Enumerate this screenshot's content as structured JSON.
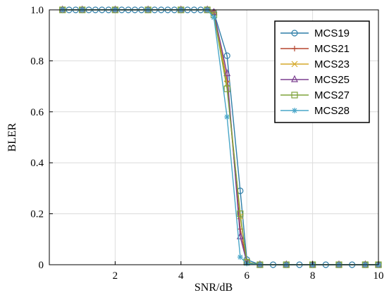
{
  "chart_data": {
    "type": "line",
    "xlabel": "SNR/dB",
    "ylabel": "BLER",
    "xlim": [
      0,
      10
    ],
    "ylim": [
      0,
      1
    ],
    "grid": true,
    "legend_position": "top-right",
    "x_ticks": [
      2,
      4,
      6,
      8,
      10
    ],
    "x_tick_labels": [
      "2",
      "4",
      "6",
      "8",
      "10"
    ],
    "y_ticks": [
      0,
      0.2,
      0.4,
      0.6,
      0.8,
      1.0
    ],
    "y_tick_labels": [
      "0",
      "0.2",
      "0.4",
      "0.6",
      "0.8",
      "1.0"
    ],
    "series": [
      {
        "name": "MCS19",
        "color": "#2e7ea8",
        "marker": "circle",
        "points": [
          [
            0.4,
            1
          ],
          [
            0.6,
            1
          ],
          [
            0.8,
            1
          ],
          [
            1.0,
            1
          ],
          [
            1.2,
            1
          ],
          [
            1.4,
            1
          ],
          [
            1.6,
            1
          ],
          [
            1.8,
            1
          ],
          [
            2.0,
            1
          ],
          [
            2.2,
            1
          ],
          [
            2.4,
            1
          ],
          [
            2.6,
            1
          ],
          [
            2.8,
            1
          ],
          [
            3.0,
            1
          ],
          [
            3.2,
            1
          ],
          [
            3.4,
            1
          ],
          [
            3.6,
            1
          ],
          [
            3.8,
            1
          ],
          [
            4.0,
            1
          ],
          [
            4.2,
            1
          ],
          [
            4.4,
            1
          ],
          [
            4.6,
            1
          ],
          [
            4.8,
            1
          ],
          [
            5.0,
            0.99
          ],
          [
            5.4,
            0.82
          ],
          [
            5.8,
            0.29
          ],
          [
            6.0,
            0.02
          ],
          [
            6.4,
            0
          ],
          [
            6.8,
            0
          ],
          [
            7.2,
            0
          ],
          [
            7.6,
            0
          ],
          [
            8.0,
            0
          ],
          [
            8.4,
            0
          ],
          [
            8.8,
            0
          ],
          [
            9.2,
            0
          ],
          [
            9.6,
            0
          ],
          [
            10.0,
            0
          ]
        ]
      },
      {
        "name": "MCS21",
        "color": "#b5452f",
        "marker": "plus",
        "points": [
          [
            0.4,
            1
          ],
          [
            1.0,
            1
          ],
          [
            2.0,
            1
          ],
          [
            3.0,
            1
          ],
          [
            4.0,
            1
          ],
          [
            4.8,
            1
          ],
          [
            5.0,
            0.99
          ],
          [
            5.4,
            0.72
          ],
          [
            5.8,
            0.14
          ],
          [
            6.0,
            0.01
          ],
          [
            6.4,
            0
          ],
          [
            7.2,
            0
          ],
          [
            8.0,
            0
          ],
          [
            8.8,
            0
          ],
          [
            9.6,
            0
          ],
          [
            10.0,
            0
          ]
        ]
      },
      {
        "name": "MCS23",
        "color": "#d6a92a",
        "marker": "x",
        "points": [
          [
            0.4,
            1
          ],
          [
            1.0,
            1
          ],
          [
            2.0,
            1
          ],
          [
            3.0,
            1
          ],
          [
            4.0,
            1
          ],
          [
            4.8,
            1
          ],
          [
            5.0,
            0.99
          ],
          [
            5.4,
            0.71
          ],
          [
            5.8,
            0.19
          ],
          [
            6.0,
            0.01
          ],
          [
            6.4,
            0
          ],
          [
            7.2,
            0
          ],
          [
            8.0,
            0
          ],
          [
            8.8,
            0
          ],
          [
            9.6,
            0
          ],
          [
            10.0,
            0
          ]
        ]
      },
      {
        "name": "MCS25",
        "color": "#7b3f8f",
        "marker": "triangle",
        "points": [
          [
            0.4,
            1
          ],
          [
            1.0,
            1
          ],
          [
            2.0,
            1
          ],
          [
            3.0,
            1
          ],
          [
            4.0,
            1
          ],
          [
            4.8,
            1
          ],
          [
            5.0,
            0.99
          ],
          [
            5.4,
            0.75
          ],
          [
            5.8,
            0.11
          ],
          [
            6.0,
            0.01
          ],
          [
            6.4,
            0
          ],
          [
            7.2,
            0
          ],
          [
            8.0,
            0
          ],
          [
            8.8,
            0
          ],
          [
            9.6,
            0
          ],
          [
            10.0,
            0
          ]
        ]
      },
      {
        "name": "MCS27",
        "color": "#7fa43a",
        "marker": "square",
        "points": [
          [
            0.4,
            1
          ],
          [
            1.0,
            1
          ],
          [
            2.0,
            1
          ],
          [
            3.0,
            1
          ],
          [
            4.0,
            1
          ],
          [
            4.8,
            1
          ],
          [
            5.0,
            0.98
          ],
          [
            5.4,
            0.69
          ],
          [
            5.8,
            0.2
          ],
          [
            6.0,
            0.01
          ],
          [
            6.4,
            0
          ],
          [
            7.2,
            0
          ],
          [
            8.0,
            0
          ],
          [
            8.8,
            0
          ],
          [
            9.6,
            0
          ],
          [
            10.0,
            0
          ]
        ]
      },
      {
        "name": "MCS28",
        "color": "#49a6c8",
        "marker": "star",
        "points": [
          [
            0.4,
            1
          ],
          [
            1.0,
            1
          ],
          [
            2.0,
            1
          ],
          [
            3.0,
            1
          ],
          [
            4.0,
            1
          ],
          [
            4.8,
            1
          ],
          [
            5.0,
            0.97
          ],
          [
            5.4,
            0.58
          ],
          [
            5.8,
            0.03
          ],
          [
            6.0,
            0.005
          ],
          [
            6.4,
            0
          ],
          [
            7.2,
            0
          ],
          [
            8.0,
            0
          ],
          [
            8.8,
            0
          ],
          [
            9.6,
            0
          ],
          [
            10.0,
            0
          ]
        ]
      }
    ]
  }
}
